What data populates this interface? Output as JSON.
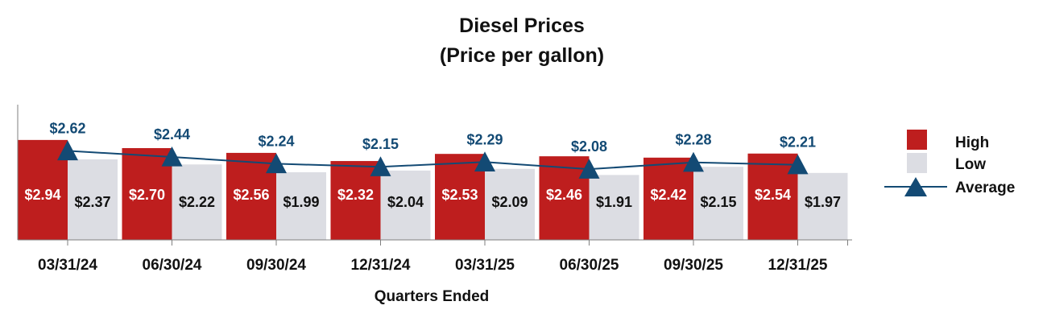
{
  "chart_data": {
    "type": "bar",
    "title": "Diesel Prices",
    "subtitle": "(Price per gallon)",
    "xlabel": "Quarters Ended",
    "ylabel": "",
    "ylim": [
      0,
      3.15
    ],
    "categories": [
      "03/31/24",
      "06/30/24",
      "09/30/24",
      "12/31/24",
      "03/31/25",
      "06/30/25",
      "09/30/25",
      "12/31/25"
    ],
    "series": [
      {
        "name": "High",
        "kind": "bar",
        "color": "#BE1E1E",
        "values": [
          2.94,
          2.7,
          2.56,
          2.32,
          2.53,
          2.46,
          2.42,
          2.54
        ],
        "labels": [
          "$2.94",
          "$2.70",
          "$2.56",
          "$2.32",
          "$2.53",
          "$2.46",
          "$2.42",
          "$2.54"
        ]
      },
      {
        "name": "Low",
        "kind": "bar",
        "color": "#DCDDE3",
        "values": [
          2.37,
          2.22,
          1.99,
          2.04,
          2.09,
          1.91,
          2.15,
          1.97
        ],
        "labels": [
          "$2.37",
          "$2.22",
          "$1.99",
          "$2.04",
          "$2.09",
          "$1.91",
          "$2.15",
          "$1.97"
        ]
      },
      {
        "name": "Average",
        "kind": "line",
        "color": "#134A74",
        "values": [
          2.62,
          2.44,
          2.24,
          2.15,
          2.29,
          2.08,
          2.28,
          2.21
        ],
        "labels": [
          "$2.62",
          "$2.44",
          "$2.24",
          "$2.15",
          "$2.29",
          "$2.08",
          "$2.28",
          "$2.21"
        ]
      }
    ],
    "legend": {
      "position": "right",
      "entries": [
        "High",
        "Low",
        "Average"
      ]
    },
    "grid": false
  }
}
